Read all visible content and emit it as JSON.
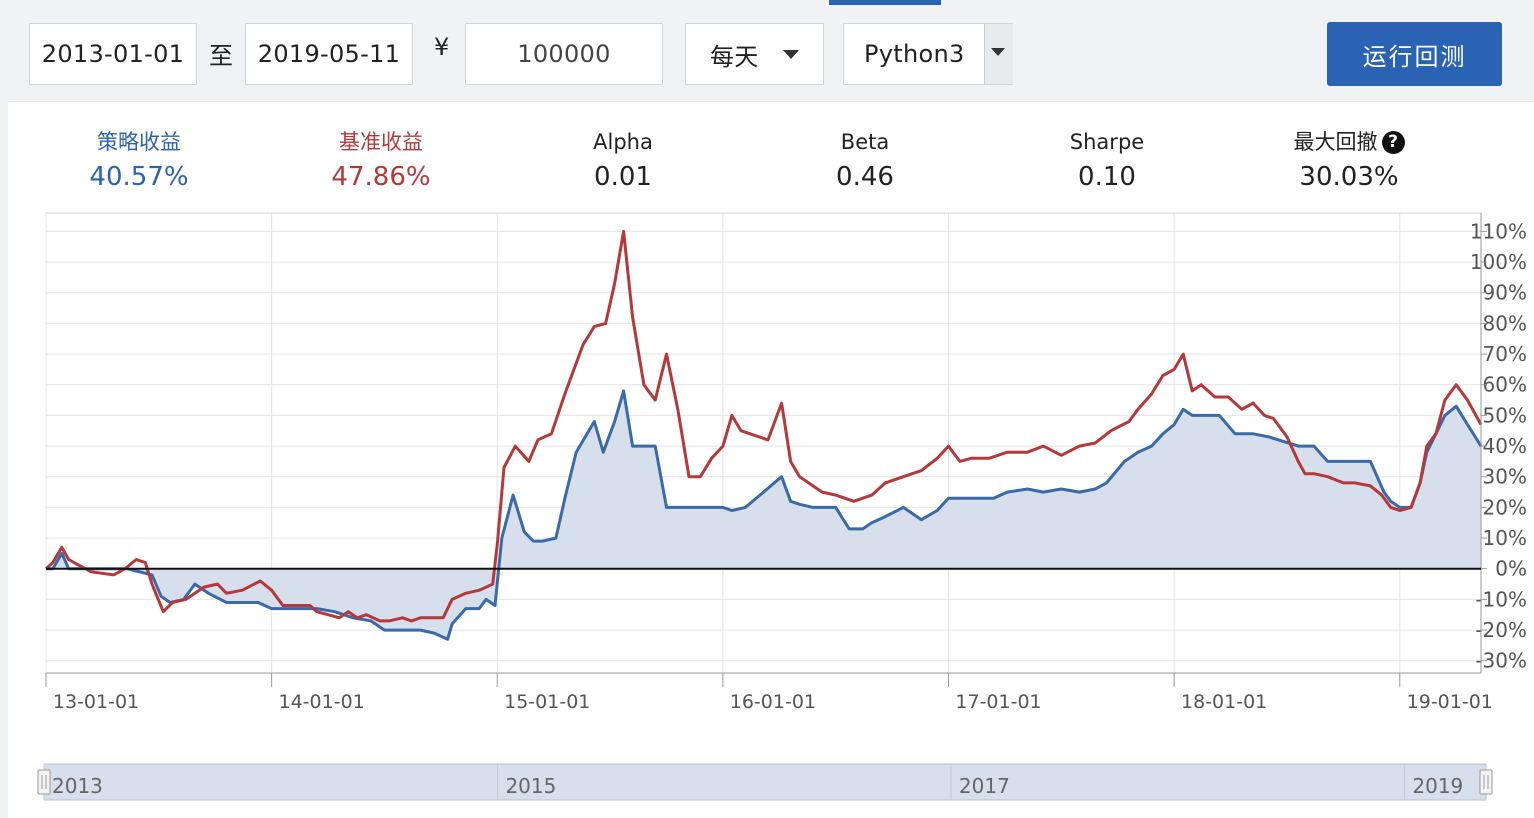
{
  "controls": {
    "start_date": "2013-01-01",
    "to_label": "至",
    "end_date": "2019-05-11",
    "currency_symbol": "¥",
    "capital": "100000",
    "frequency": "每天",
    "language": "Python3",
    "run_button": "运行回测"
  },
  "stats": [
    {
      "title": "策略收益",
      "value": "40.57%",
      "color": "#2b63b4"
    },
    {
      "title": "基准收益",
      "value": "47.86%",
      "color": "#b5383b"
    },
    {
      "title": "Alpha",
      "value": "0.01",
      "color": "#222222"
    },
    {
      "title": "Beta",
      "value": "0.46",
      "color": "#222222"
    },
    {
      "title": "Sharpe",
      "value": "0.10",
      "color": "#222222"
    },
    {
      "title": "最大回撤",
      "value": "30.03%",
      "color": "#222222",
      "help_icon": "question-circle-icon",
      "help_glyph": "?"
    }
  ],
  "chart_data": {
    "type": "line",
    "xlim": [
      2013.0,
      2019.36
    ],
    "ylim": [
      -34,
      116
    ],
    "x_ticks": [
      {
        "x": 2013.0,
        "label": "13-01-01"
      },
      {
        "x": 2014.0,
        "label": "14-01-01"
      },
      {
        "x": 2015.0,
        "label": "15-01-01"
      },
      {
        "x": 2016.0,
        "label": "16-01-01"
      },
      {
        "x": 2017.0,
        "label": "17-01-01"
      },
      {
        "x": 2018.0,
        "label": "18-01-01"
      },
      {
        "x": 2019.0,
        "label": "19-01-01"
      }
    ],
    "y_ticks": [
      -30,
      -20,
      -10,
      0,
      10,
      20,
      30,
      40,
      50,
      60,
      70,
      80,
      90,
      100,
      110
    ],
    "y_tick_suffix": "%",
    "grid": true,
    "series": [
      {
        "color": "#3a6aa8",
        "fill": true,
        "values": [
          [
            2013.0,
            0
          ],
          [
            2013.03,
            0
          ],
          [
            2013.07,
            5
          ],
          [
            2013.1,
            0
          ],
          [
            2013.18,
            0
          ],
          [
            2013.3,
            0
          ],
          [
            2013.36,
            0
          ],
          [
            2013.47,
            -2
          ],
          [
            2013.51,
            -9
          ],
          [
            2013.55,
            -11
          ],
          [
            2013.61,
            -10
          ],
          [
            2013.66,
            -5
          ],
          [
            2013.72,
            -8
          ],
          [
            2013.8,
            -11
          ],
          [
            2013.87,
            -11
          ],
          [
            2013.94,
            -11
          ],
          [
            2014.0,
            -13
          ],
          [
            2014.1,
            -13
          ],
          [
            2014.2,
            -13
          ],
          [
            2014.28,
            -14
          ],
          [
            2014.36,
            -16
          ],
          [
            2014.44,
            -17
          ],
          [
            2014.5,
            -20
          ],
          [
            2014.6,
            -20
          ],
          [
            2014.66,
            -20
          ],
          [
            2014.72,
            -21
          ],
          [
            2014.78,
            -23
          ],
          [
            2014.8,
            -18
          ],
          [
            2014.86,
            -13
          ],
          [
            2014.92,
            -13
          ],
          [
            2014.95,
            -10
          ],
          [
            2014.99,
            -12
          ],
          [
            2015.02,
            10
          ],
          [
            2015.07,
            24
          ],
          [
            2015.12,
            12
          ],
          [
            2015.16,
            9
          ],
          [
            2015.2,
            9
          ],
          [
            2015.26,
            10
          ],
          [
            2015.3,
            23
          ],
          [
            2015.35,
            38
          ],
          [
            2015.43,
            48
          ],
          [
            2015.47,
            38
          ],
          [
            2015.52,
            48
          ],
          [
            2015.56,
            58
          ],
          [
            2015.6,
            40
          ],
          [
            2015.65,
            40
          ],
          [
            2015.7,
            40
          ],
          [
            2015.75,
            20
          ],
          [
            2015.85,
            20
          ],
          [
            2015.92,
            20
          ],
          [
            2016.0,
            20
          ],
          [
            2016.04,
            19
          ],
          [
            2016.1,
            20
          ],
          [
            2016.18,
            25
          ],
          [
            2016.26,
            30
          ],
          [
            2016.3,
            22
          ],
          [
            2016.34,
            21
          ],
          [
            2016.4,
            20
          ],
          [
            2016.5,
            20
          ],
          [
            2016.56,
            13
          ],
          [
            2016.62,
            13
          ],
          [
            2016.66,
            15
          ],
          [
            2016.72,
            17
          ],
          [
            2016.8,
            20
          ],
          [
            2016.88,
            16
          ],
          [
            2016.95,
            19
          ],
          [
            2017.0,
            23
          ],
          [
            2017.1,
            23
          ],
          [
            2017.2,
            23
          ],
          [
            2017.26,
            25
          ],
          [
            2017.35,
            26
          ],
          [
            2017.42,
            25
          ],
          [
            2017.5,
            26
          ],
          [
            2017.58,
            25
          ],
          [
            2017.65,
            26
          ],
          [
            2017.7,
            28
          ],
          [
            2017.78,
            35
          ],
          [
            2017.84,
            38
          ],
          [
            2017.9,
            40
          ],
          [
            2017.95,
            44
          ],
          [
            2018.0,
            47
          ],
          [
            2018.04,
            52
          ],
          [
            2018.08,
            50
          ],
          [
            2018.13,
            50
          ],
          [
            2018.2,
            50
          ],
          [
            2018.27,
            44
          ],
          [
            2018.35,
            44
          ],
          [
            2018.42,
            43
          ],
          [
            2018.55,
            40
          ],
          [
            2018.62,
            40
          ],
          [
            2018.68,
            35
          ],
          [
            2018.8,
            35
          ],
          [
            2018.87,
            35
          ],
          [
            2018.93,
            25
          ],
          [
            2018.96,
            22
          ],
          [
            2019.0,
            20
          ],
          [
            2019.05,
            20
          ],
          [
            2019.09,
            28
          ],
          [
            2019.12,
            38
          ],
          [
            2019.16,
            44
          ],
          [
            2019.2,
            50
          ],
          [
            2019.25,
            53
          ],
          [
            2019.3,
            47
          ],
          [
            2019.36,
            40
          ]
        ]
      },
      {
        "color": "#b5383b",
        "fill": false,
        "values": [
          [
            2013.0,
            0
          ],
          [
            2013.03,
            2
          ],
          [
            2013.07,
            7
          ],
          [
            2013.1,
            3
          ],
          [
            2013.15,
            1
          ],
          [
            2013.2,
            -1
          ],
          [
            2013.3,
            -2
          ],
          [
            2013.35,
            0
          ],
          [
            2013.4,
            3
          ],
          [
            2013.44,
            2
          ],
          [
            2013.47,
            -5
          ],
          [
            2013.52,
            -14
          ],
          [
            2013.56,
            -11
          ],
          [
            2013.62,
            -10
          ],
          [
            2013.66,
            -8
          ],
          [
            2013.7,
            -6
          ],
          [
            2013.76,
            -5
          ],
          [
            2013.8,
            -8
          ],
          [
            2013.87,
            -7
          ],
          [
            2013.95,
            -4
          ],
          [
            2014.0,
            -7
          ],
          [
            2014.05,
            -12
          ],
          [
            2014.1,
            -12
          ],
          [
            2014.17,
            -12
          ],
          [
            2014.2,
            -14
          ],
          [
            2014.25,
            -15
          ],
          [
            2014.3,
            -16
          ],
          [
            2014.34,
            -14
          ],
          [
            2014.38,
            -16
          ],
          [
            2014.42,
            -15
          ],
          [
            2014.48,
            -17
          ],
          [
            2014.52,
            -17
          ],
          [
            2014.58,
            -16
          ],
          [
            2014.62,
            -17
          ],
          [
            2014.66,
            -16
          ],
          [
            2014.7,
            -16
          ],
          [
            2014.76,
            -16
          ],
          [
            2014.8,
            -10
          ],
          [
            2014.86,
            -8
          ],
          [
            2014.92,
            -7
          ],
          [
            2014.98,
            -5
          ],
          [
            2015.0,
            8
          ],
          [
            2015.03,
            33
          ],
          [
            2015.08,
            40
          ],
          [
            2015.14,
            35
          ],
          [
            2015.18,
            42
          ],
          [
            2015.24,
            44
          ],
          [
            2015.3,
            57
          ],
          [
            2015.38,
            73
          ],
          [
            2015.43,
            79
          ],
          [
            2015.48,
            80
          ],
          [
            2015.52,
            93
          ],
          [
            2015.56,
            110
          ],
          [
            2015.6,
            82
          ],
          [
            2015.65,
            60
          ],
          [
            2015.7,
            55
          ],
          [
            2015.75,
            70
          ],
          [
            2015.8,
            52
          ],
          [
            2015.85,
            30
          ],
          [
            2015.9,
            30
          ],
          [
            2015.95,
            36
          ],
          [
            2016.0,
            40
          ],
          [
            2016.04,
            50
          ],
          [
            2016.08,
            45
          ],
          [
            2016.12,
            44
          ],
          [
            2016.2,
            42
          ],
          [
            2016.26,
            54
          ],
          [
            2016.3,
            35
          ],
          [
            2016.34,
            30
          ],
          [
            2016.38,
            28
          ],
          [
            2016.44,
            25
          ],
          [
            2016.5,
            24
          ],
          [
            2016.58,
            22
          ],
          [
            2016.66,
            24
          ],
          [
            2016.72,
            28
          ],
          [
            2016.8,
            30
          ],
          [
            2016.88,
            32
          ],
          [
            2016.95,
            36
          ],
          [
            2017.0,
            40
          ],
          [
            2017.05,
            35
          ],
          [
            2017.1,
            36
          ],
          [
            2017.18,
            36
          ],
          [
            2017.26,
            38
          ],
          [
            2017.35,
            38
          ],
          [
            2017.42,
            40
          ],
          [
            2017.5,
            37
          ],
          [
            2017.58,
            40
          ],
          [
            2017.65,
            41
          ],
          [
            2017.72,
            45
          ],
          [
            2017.8,
            48
          ],
          [
            2017.84,
            52
          ],
          [
            2017.9,
            57
          ],
          [
            2017.95,
            63
          ],
          [
            2018.0,
            65
          ],
          [
            2018.04,
            70
          ],
          [
            2018.08,
            58
          ],
          [
            2018.12,
            60
          ],
          [
            2018.18,
            56
          ],
          [
            2018.24,
            56
          ],
          [
            2018.3,
            52
          ],
          [
            2018.35,
            54
          ],
          [
            2018.4,
            50
          ],
          [
            2018.44,
            49
          ],
          [
            2018.5,
            43
          ],
          [
            2018.55,
            35
          ],
          [
            2018.58,
            31
          ],
          [
            2018.62,
            31
          ],
          [
            2018.68,
            30
          ],
          [
            2018.75,
            28
          ],
          [
            2018.8,
            28
          ],
          [
            2018.87,
            27
          ],
          [
            2018.92,
            24
          ],
          [
            2018.96,
            20
          ],
          [
            2019.0,
            19
          ],
          [
            2019.05,
            20
          ],
          [
            2019.09,
            28
          ],
          [
            2019.12,
            40
          ],
          [
            2019.16,
            44
          ],
          [
            2019.2,
            55
          ],
          [
            2019.25,
            60
          ],
          [
            2019.3,
            55
          ],
          [
            2019.36,
            47
          ]
        ]
      }
    ]
  },
  "navigator": {
    "labels": [
      {
        "x": 2013.0,
        "text": "2013"
      },
      {
        "x": 2015.0,
        "text": "2015"
      },
      {
        "x": 2017.0,
        "text": "2017"
      },
      {
        "x": 2019.0,
        "text": "2019"
      }
    ],
    "range": [
      2013.0,
      2019.36
    ]
  }
}
